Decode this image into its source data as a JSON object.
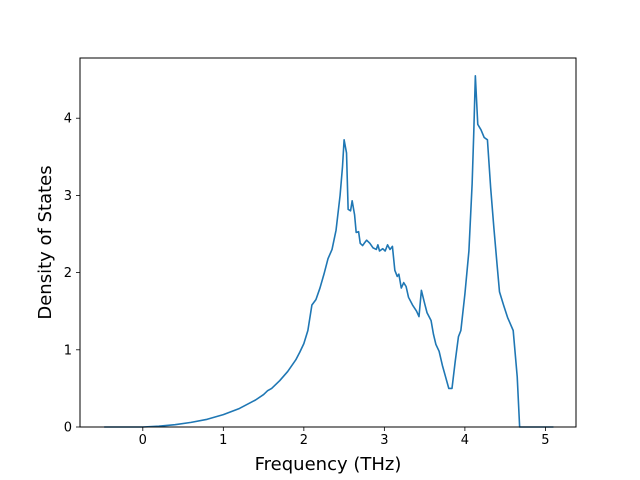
{
  "chart_data": {
    "type": "line",
    "title": "",
    "xlabel": "Frequency (THz)",
    "ylabel": "Density of States",
    "xlim": [
      -0.78,
      5.38
    ],
    "ylim": [
      0,
      4.78
    ],
    "xticks": [
      0,
      1,
      2,
      3,
      4,
      5
    ],
    "yticks": [
      0,
      1,
      2,
      3,
      4
    ],
    "grid": false,
    "series": [
      {
        "color": "#1f77b4",
        "points": [
          [
            -0.48,
            0.0
          ],
          [
            0.0,
            0.0
          ],
          [
            0.2,
            0.01
          ],
          [
            0.4,
            0.03
          ],
          [
            0.6,
            0.06
          ],
          [
            0.8,
            0.1
          ],
          [
            1.0,
            0.16
          ],
          [
            1.2,
            0.24
          ],
          [
            1.4,
            0.35
          ],
          [
            1.5,
            0.42
          ],
          [
            1.55,
            0.47
          ],
          [
            1.6,
            0.5
          ],
          [
            1.7,
            0.6
          ],
          [
            1.8,
            0.72
          ],
          [
            1.9,
            0.87
          ],
          [
            1.95,
            0.97
          ],
          [
            2.0,
            1.08
          ],
          [
            2.05,
            1.25
          ],
          [
            2.1,
            1.58
          ],
          [
            2.15,
            1.65
          ],
          [
            2.2,
            1.8
          ],
          [
            2.25,
            1.98
          ],
          [
            2.3,
            2.18
          ],
          [
            2.35,
            2.3
          ],
          [
            2.4,
            2.55
          ],
          [
            2.45,
            3.0
          ],
          [
            2.48,
            3.37
          ],
          [
            2.5,
            3.72
          ],
          [
            2.53,
            3.55
          ],
          [
            2.55,
            2.82
          ],
          [
            2.58,
            2.8
          ],
          [
            2.6,
            2.93
          ],
          [
            2.63,
            2.75
          ],
          [
            2.65,
            2.52
          ],
          [
            2.68,
            2.53
          ],
          [
            2.7,
            2.38
          ],
          [
            2.73,
            2.35
          ],
          [
            2.75,
            2.38
          ],
          [
            2.78,
            2.42
          ],
          [
            2.82,
            2.38
          ],
          [
            2.86,
            2.32
          ],
          [
            2.9,
            2.3
          ],
          [
            2.92,
            2.36
          ],
          [
            2.94,
            2.28
          ],
          [
            2.98,
            2.31
          ],
          [
            3.01,
            2.28
          ],
          [
            3.04,
            2.36
          ],
          [
            3.07,
            2.3
          ],
          [
            3.1,
            2.34
          ],
          [
            3.13,
            2.03
          ],
          [
            3.16,
            1.95
          ],
          [
            3.18,
            1.98
          ],
          [
            3.21,
            1.8
          ],
          [
            3.24,
            1.87
          ],
          [
            3.27,
            1.82
          ],
          [
            3.3,
            1.68
          ],
          [
            3.35,
            1.58
          ],
          [
            3.4,
            1.5
          ],
          [
            3.43,
            1.43
          ],
          [
            3.46,
            1.77
          ],
          [
            3.5,
            1.6
          ],
          [
            3.53,
            1.48
          ],
          [
            3.58,
            1.38
          ],
          [
            3.61,
            1.2
          ],
          [
            3.64,
            1.07
          ],
          [
            3.68,
            0.98
          ],
          [
            3.72,
            0.8
          ],
          [
            3.76,
            0.65
          ],
          [
            3.8,
            0.5
          ],
          [
            3.84,
            0.5
          ],
          [
            3.88,
            0.85
          ],
          [
            3.92,
            1.17
          ],
          [
            3.95,
            1.25
          ],
          [
            4.0,
            1.72
          ],
          [
            4.05,
            2.28
          ],
          [
            4.09,
            3.15
          ],
          [
            4.11,
            3.8
          ],
          [
            4.13,
            4.55
          ],
          [
            4.16,
            3.92
          ],
          [
            4.2,
            3.85
          ],
          [
            4.24,
            3.75
          ],
          [
            4.28,
            3.72
          ],
          [
            4.32,
            3.1
          ],
          [
            4.36,
            2.58
          ],
          [
            4.4,
            2.1
          ],
          [
            4.43,
            1.75
          ],
          [
            4.48,
            1.58
          ],
          [
            4.53,
            1.42
          ],
          [
            4.6,
            1.25
          ],
          [
            4.65,
            0.65
          ],
          [
            4.68,
            0.0
          ],
          [
            5.1,
            0.0
          ]
        ]
      }
    ]
  }
}
